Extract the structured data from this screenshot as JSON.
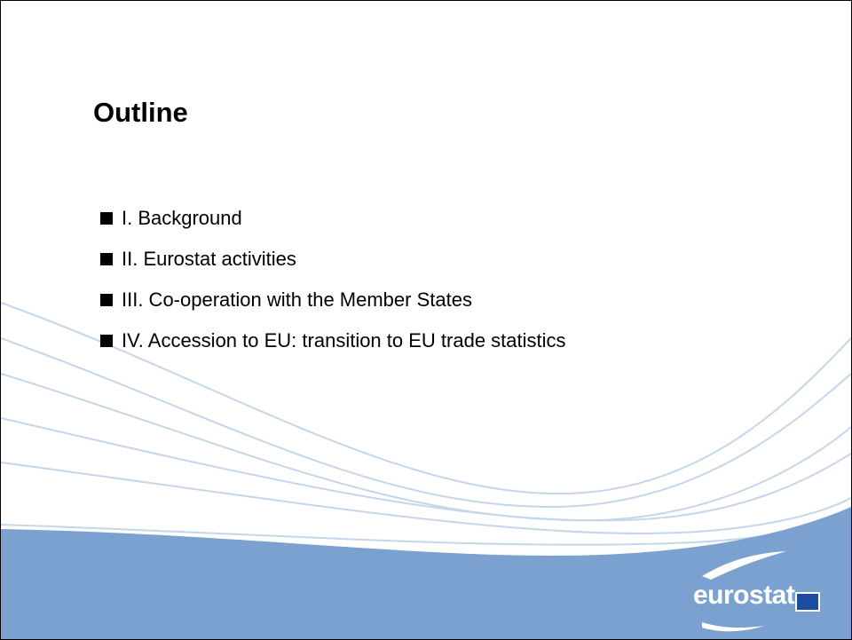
{
  "slide": {
    "title": "Outline",
    "items": [
      "I. Background",
      "II. Eurostat activities",
      "III. Co-operation with the Member States",
      "IV. Accession to EU: transition to EU trade statistics"
    ],
    "logo": "eurostat"
  }
}
